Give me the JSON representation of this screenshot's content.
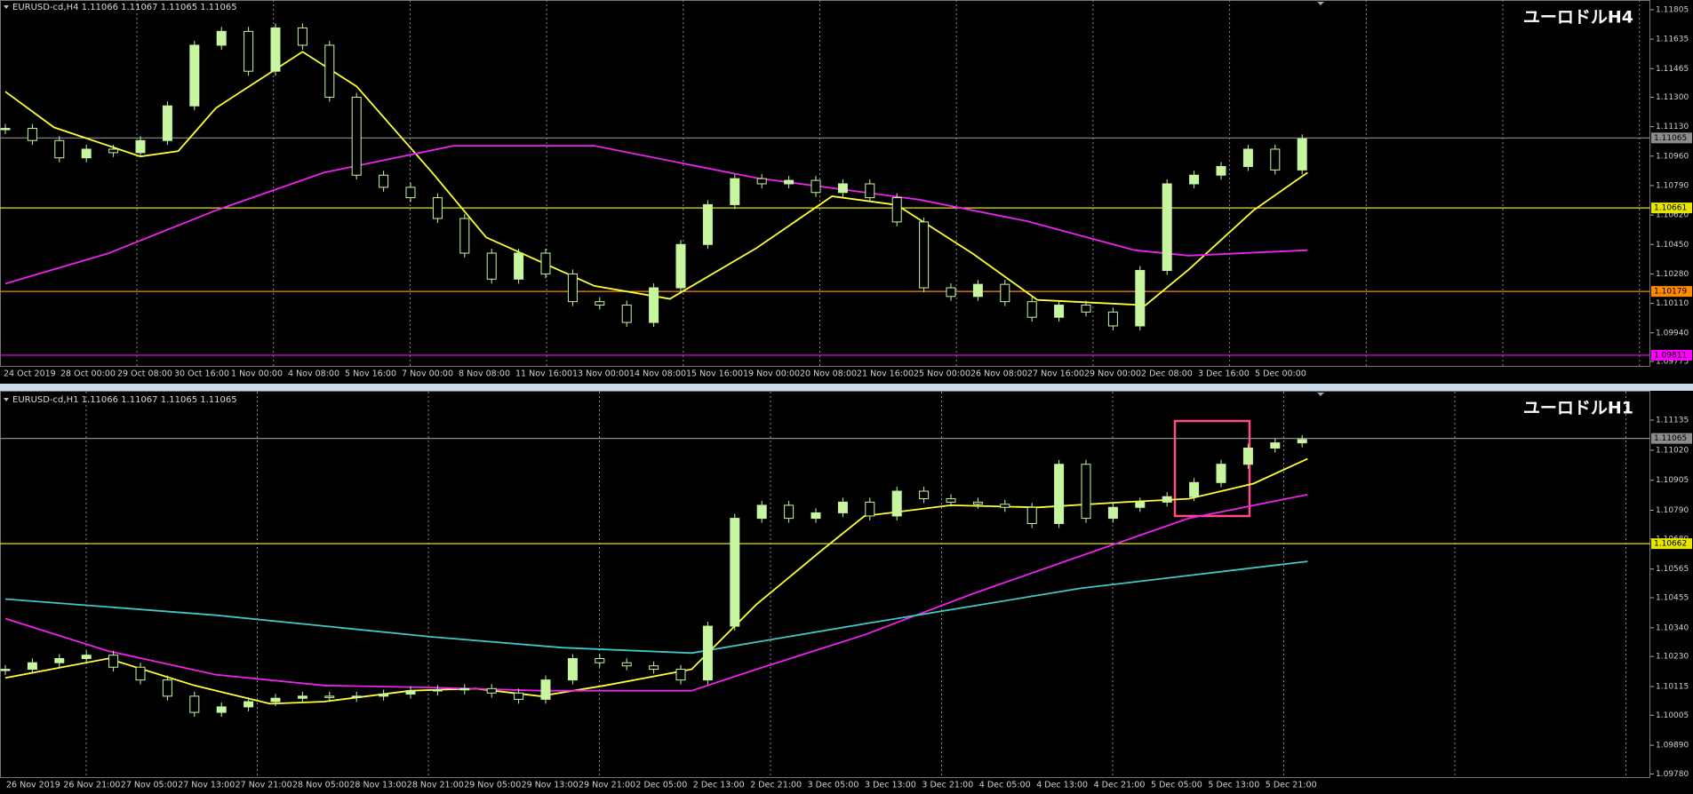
{
  "chart_data": [
    {
      "type": "candlestick",
      "title": "ユーロドルH4",
      "subtitle": "EURUSD-cd,H4  1.11066 1.11067 1.11065 1.11065",
      "ylim": [
        1.09744,
        1.11861
      ],
      "yticks": [
        1.11805,
        1.11635,
        1.11465,
        {
          "value": 1.113,
          "label": "1.11300"
        },
        {
          "value": 1.1113,
          "label": "1.11130"
        },
        {
          "value": 1.1096,
          "label": "1.10960"
        },
        {
          "value": 1.1079,
          "label": "1.10790"
        },
        {
          "value": 1.1062,
          "label": "1.10620"
        },
        {
          "value": 1.1045,
          "label": "1.10450"
        },
        {
          "value": 1.1028,
          "label": "1.10280"
        },
        {
          "value": 1.1011,
          "label": "1.10110"
        },
        {
          "value": 1.0994,
          "label": "1.09940"
        },
        1.09775
      ],
      "xlabels": [
        "24 Oct 2019",
        "28 Oct 00:00",
        "29 Oct 08:00",
        "30 Oct 16:00",
        "1 Nov 00:00",
        "4 Nov 08:00",
        "5 Nov 16:00",
        "7 Nov 00:00",
        "8 Nov 08:00",
        "11 Nov 16:00",
        "13 Nov 00:00",
        "14 Nov 08:00",
        "15 Nov 16:00",
        "19 Nov 00:00",
        "20 Nov 08:00",
        "21 Nov 16:00",
        "25 Nov 00:00",
        "26 Nov 08:00",
        "27 Nov 16:00",
        "29 Nov 00:00",
        "2 Dec 08:00",
        "3 Dec 16:00",
        "5 Dec 00:00"
      ],
      "color": "#c8f5a0",
      "values": [
        1.1112,
        1.1105,
        1.1095,
        1.11,
        1.1098,
        1.1105,
        1.1125,
        1.116,
        1.1168,
        1.1145,
        1.117,
        1.116,
        1.113,
        1.1085,
        1.1078,
        1.1072,
        1.106,
        1.104,
        1.1025,
        1.104,
        1.1028,
        1.1012,
        1.101,
        1.1,
        1.102,
        1.1045,
        1.1068,
        1.1083,
        1.108,
        1.1082,
        1.1075,
        1.108,
        1.1072,
        1.1058,
        1.102,
        1.1015,
        1.1022,
        1.1012,
        1.1003,
        1.101,
        1.1006,
        1.0998,
        1.103,
        1.108,
        1.1085,
        1.109,
        1.11,
        1.1088,
        1.1106
      ],
      "series": [
        {
          "color": "#ffff33",
          "x": [
            0,
            1.8,
            5,
            6.4,
            7.8,
            11,
            13,
            15.8,
            17.8,
            21.8,
            24.6,
            27.8,
            30.6,
            33,
            35.8,
            38.2,
            42.2,
            43.8,
            46.2,
            48.2
          ],
          "values": [
            1.11332,
            1.11126,
            1.10958,
            1.10989,
            1.11238,
            1.11562,
            1.11363,
            1.10865,
            1.10491,
            1.10211,
            1.10136,
            1.10429,
            1.10728,
            1.10678,
            1.10398,
            1.1013,
            1.10099,
            1.10305,
            1.10647,
            1.10865
          ]
        },
        {
          "color": "#ee22ee",
          "x": [
            0,
            3.8,
            7.8,
            11.8,
            16.6,
            21.8,
            27.8,
            33.8,
            37.8,
            41.8,
            43.8,
            48.2
          ],
          "values": [
            1.10224,
            1.10398,
            1.10647,
            1.10865,
            1.1102,
            1.1102,
            1.10834,
            1.10709,
            1.10585,
            1.10417,
            1.10386,
            1.10417
          ]
        }
      ],
      "hlines": [
        {
          "value": 1.11065,
          "color": "#8c8c8c"
        },
        {
          "value": 1.10661,
          "color": "#e6e600"
        },
        {
          "value": 1.10179,
          "color": "#ff8c00"
        },
        {
          "value": 1.09811,
          "color": "#ff00ff"
        }
      ]
    },
    {
      "type": "candlestick",
      "title": "ユーロドルH1",
      "subtitle": "EURUSD-cd,H1  1.11066 1.11067 1.11065 1.11065",
      "ylim": [
        1.09768,
        1.11193
      ],
      "yticks": [
        1.11135,
        {
          "value": 1.1102,
          "label": "1.11020"
        },
        1.10905,
        {
          "value": 1.1079,
          "label": "1.10790"
        },
        {
          "value": 1.1068,
          "label": "1.10680"
        },
        1.10565,
        1.10455,
        {
          "value": 1.1034,
          "label": "1.10340"
        },
        {
          "value": 1.1023,
          "label": "1.10230"
        },
        1.10115,
        1.10005,
        {
          "value": 1.0989,
          "label": "1.09890"
        },
        {
          "value": 1.0978,
          "label": "1.09780"
        }
      ],
      "xlabels": [
        "26 Nov 2019",
        "26 Nov 21:00",
        "27 Nov 05:00",
        "27 Nov 13:00",
        "27 Nov 21:00",
        "28 Nov 05:00",
        "28 Nov 13:00",
        "28 Nov 21:00",
        "29 Nov 05:00",
        "29 Nov 13:00",
        "29 Nov 21:00",
        "2 Dec 05:00",
        "2 Dec 13:00",
        "2 Dec 21:00",
        "3 Dec 05:00",
        "3 Dec 13:00",
        "3 Dec 21:00",
        "4 Dec 05:00",
        "4 Dec 13:00",
        "4 Dec 21:00",
        "5 Dec 05:00",
        "5 Dec 13:00",
        "5 Dec 21:00"
      ],
      "color": "#c8f5a0",
      "values": [
        1.10181,
        1.10206,
        1.10222,
        1.10235,
        1.10189,
        1.1014,
        1.10078,
        1.10016,
        1.10037,
        1.10057,
        1.1007,
        1.10078,
        1.10074,
        1.10078,
        1.10086,
        1.10099,
        1.10103,
        1.10107,
        1.1009,
        1.10066,
        1.1014,
        1.10222,
        1.10206,
        1.10194,
        1.10181,
        1.1014,
        1.10346,
        1.10759,
        1.10809,
        1.10759,
        1.1078,
        1.10821,
        1.10768,
        1.10863,
        1.10834,
        1.10821,
        1.10813,
        1.10801,
        1.10739,
        1.10966,
        1.10759,
        1.10801,
        1.10821,
        1.10842,
        1.10896,
        1.10966,
        1.11028,
        1.11048,
        1.11061
      ],
      "series": [
        {
          "color": "#ffff33",
          "x": [
            0,
            3.8,
            7,
            9.8,
            11.8,
            15,
            17.4,
            19.8,
            22.2,
            25.4,
            27.8,
            30.2,
            31.8,
            35,
            38.2,
            41.4,
            43.8,
            46.2,
            48.2
          ],
          "values": [
            1.10148,
            1.10222,
            1.10119,
            1.10049,
            1.10057,
            1.10099,
            1.10107,
            1.10078,
            1.10119,
            1.10181,
            1.10429,
            1.10635,
            1.10768,
            1.10809,
            1.10801,
            1.10821,
            1.10834,
            1.10892,
            1.10987
          ]
        },
        {
          "color": "#ee22ee",
          "x": [
            0,
            3.8,
            7.8,
            11.8,
            15.8,
            19.8,
            25.4,
            27.8,
            31.8,
            35.8,
            39.8,
            43.8,
            48.2
          ],
          "values": [
            1.10375,
            1.10251,
            1.1016,
            1.10119,
            1.10111,
            1.10099,
            1.10099,
            1.10181,
            1.10313,
            1.1047,
            1.10615,
            1.10759,
            1.1085
          ]
        },
        {
          "color": "#40c8c8",
          "x": [
            0,
            7.8,
            15.8,
            20.6,
            25.4,
            31.8,
            39.8,
            48.2
          ],
          "values": [
            1.1045,
            1.10388,
            1.10305,
            1.10264,
            1.10243,
            1.10355,
            1.10491,
            1.10594
          ]
        }
      ],
      "hlines": [
        {
          "value": 1.11065,
          "color": "#8c8c8c"
        },
        {
          "value": 1.10662,
          "color": "#e6e600"
        }
      ]
    }
  ]
}
